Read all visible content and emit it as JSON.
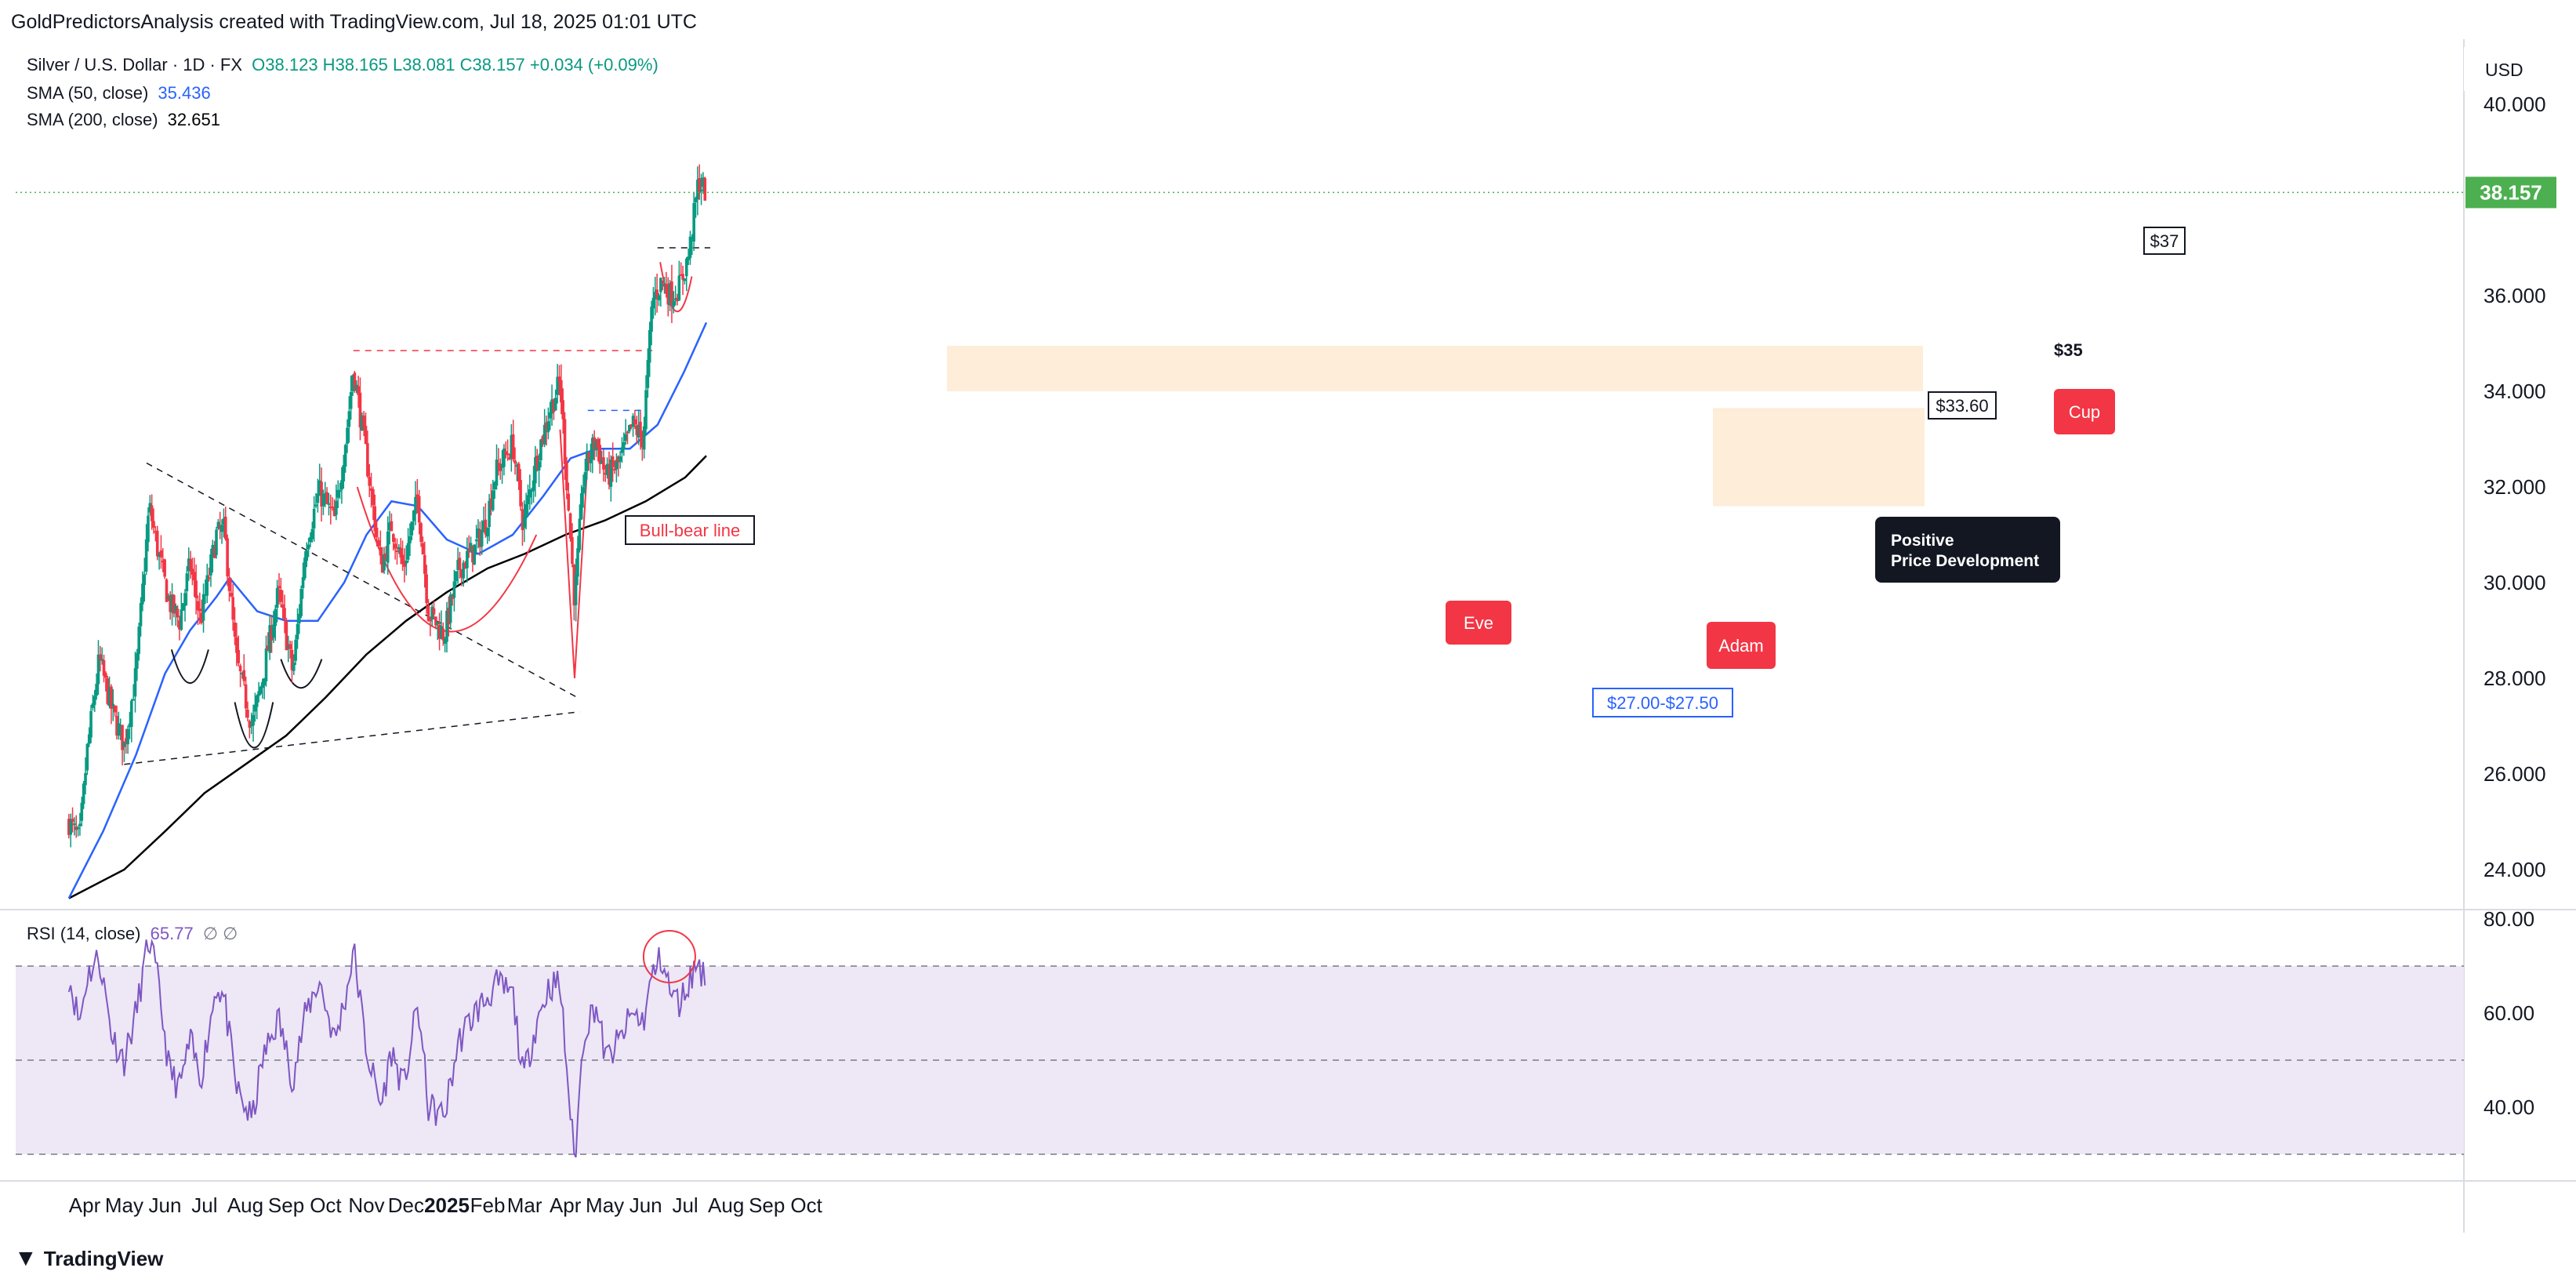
{
  "header": {
    "text": "GoldPredictorsAnalysis created with TradingView.com, Jul 18, 2025 01:01 UTC"
  },
  "legend": {
    "symbol": "Silver / U.S. Dollar · 1D · FX",
    "ohlc": "O38.123 H38.165 L38.081 C38.157 +0.034 (+0.09%)",
    "sma50_label": "SMA (50, close)",
    "sma50_value": "35.436",
    "sma200_label": "SMA (200, close)",
    "sma200_value": "32.651",
    "rsi_label": "RSI (14, close)",
    "rsi_value": "65.77",
    "rsi_extra": "∅ ∅"
  },
  "currency": "USD",
  "footer": {
    "brand": "TradingView",
    "logo": "tradingview-logo-icon"
  },
  "colors": {
    "up": "#089981",
    "down": "#f23645",
    "sma50": "#2962ff",
    "sma200": "#000000",
    "rsi": "#7e57c2",
    "rsi_band": "#ede7f6",
    "price_tag": "#4caf50",
    "annotation": "#f23645",
    "zone": "#fde8d0"
  },
  "chart_data": {
    "type": "candlestick",
    "title": "Silver / U.S. Dollar · 1D · FX",
    "x_tick_labels": [
      "Apr",
      "May",
      "Jun",
      "Jul",
      "Aug",
      "Sep",
      "Oct",
      "Nov",
      "Dec",
      "2025",
      "Feb",
      "Mar",
      "Apr",
      "May",
      "Jun",
      "Jul",
      "Aug",
      "Sep",
      "Oct"
    ],
    "y_tick_labels": [
      "24.000",
      "26.000",
      "28.000",
      "30.000",
      "32.000",
      "34.000",
      "36.000",
      "38.000",
      "40.000"
    ],
    "ylim": [
      23.3,
      40.4
    ],
    "last_price": "38.157",
    "close_path": [
      [
        "2024-03-20",
        25.0
      ],
      [
        "2024-03-28",
        24.6
      ],
      [
        "2024-04-03",
        26.5
      ],
      [
        "2024-04-12",
        28.4
      ],
      [
        "2024-04-22",
        27.3
      ],
      [
        "2024-05-01",
        26.6
      ],
      [
        "2024-05-10",
        28.1
      ],
      [
        "2024-05-20",
        31.6
      ],
      [
        "2024-05-27",
        30.6
      ],
      [
        "2024-06-04",
        29.6
      ],
      [
        "2024-06-12",
        29.2
      ],
      [
        "2024-06-20",
        30.4
      ],
      [
        "2024-06-28",
        29.2
      ],
      [
        "2024-07-10",
        31.0
      ],
      [
        "2024-07-16",
        31.1
      ],
      [
        "2024-07-25",
        28.4
      ],
      [
        "2024-08-06",
        27.0
      ],
      [
        "2024-08-14",
        28.0
      ],
      [
        "2024-08-26",
        29.8
      ],
      [
        "2024-09-06",
        28.1
      ],
      [
        "2024-09-16",
        30.8
      ],
      [
        "2024-09-26",
        31.9
      ],
      [
        "2024-10-08",
        31.3
      ],
      [
        "2024-10-18",
        33.4
      ],
      [
        "2024-10-22",
        34.5
      ],
      [
        "2024-11-01",
        32.6
      ],
      [
        "2024-11-12",
        30.3
      ],
      [
        "2024-11-20",
        31.2
      ],
      [
        "2024-11-29",
        30.3
      ],
      [
        "2024-12-10",
        31.8
      ],
      [
        "2024-12-18",
        29.4
      ],
      [
        "2024-12-30",
        28.9
      ],
      [
        "2025-01-10",
        30.3
      ],
      [
        "2025-01-22",
        30.7
      ],
      [
        "2025-01-31",
        31.3
      ],
      [
        "2025-02-07",
        32.3
      ],
      [
        "2025-02-20",
        32.9
      ],
      [
        "2025-02-28",
        31.2
      ],
      [
        "2025-03-10",
        32.6
      ],
      [
        "2025-03-20",
        33.6
      ],
      [
        "2025-03-28",
        34.2
      ],
      [
        "2025-04-03",
        31.7
      ],
      [
        "2025-04-08",
        29.6
      ],
      [
        "2025-04-15",
        32.3
      ],
      [
        "2025-04-24",
        33.0
      ],
      [
        "2025-05-02",
        32.2
      ],
      [
        "2025-05-12",
        32.5
      ],
      [
        "2025-05-22",
        33.3
      ],
      [
        "2025-05-30",
        33.0
      ],
      [
        "2025-06-06",
        35.9
      ],
      [
        "2025-06-13",
        36.3
      ],
      [
        "2025-06-20",
        36.0
      ],
      [
        "2025-06-27",
        36.2
      ],
      [
        "2025-07-04",
        36.9
      ],
      [
        "2025-07-11",
        38.4
      ],
      [
        "2025-07-17",
        38.157
      ]
    ],
    "sma50": {
      "name": "SMA (50, close)",
      "points": [
        [
          "2024-03-20",
          23.4
        ],
        [
          "2024-04-15",
          24.8
        ],
        [
          "2024-05-10",
          26.4
        ],
        [
          "2024-06-01",
          28.1
        ],
        [
          "2024-06-20",
          29.0
        ],
        [
          "2024-07-10",
          29.7
        ],
        [
          "2024-07-20",
          30.1
        ],
        [
          "2024-08-10",
          29.4
        ],
        [
          "2024-09-01",
          29.2
        ],
        [
          "2024-09-25",
          29.2
        ],
        [
          "2024-10-15",
          30.0
        ],
        [
          "2024-11-01",
          31.0
        ],
        [
          "2024-11-20",
          31.7
        ],
        [
          "2024-12-10",
          31.6
        ],
        [
          "2025-01-01",
          30.9
        ],
        [
          "2025-01-25",
          30.6
        ],
        [
          "2025-02-20",
          31.0
        ],
        [
          "2025-03-15",
          31.8
        ],
        [
          "2025-04-05",
          32.6
        ],
        [
          "2025-04-25",
          32.8
        ],
        [
          "2025-05-20",
          32.8
        ],
        [
          "2025-06-10",
          33.3
        ],
        [
          "2025-06-30",
          34.4
        ],
        [
          "2025-07-17",
          35.436
        ]
      ]
    },
    "sma200": {
      "name": "SMA (200, close)",
      "points": [
        [
          "2024-03-20",
          23.4
        ],
        [
          "2024-05-01",
          24.0
        ],
        [
          "2024-06-01",
          24.8
        ],
        [
          "2024-07-01",
          25.6
        ],
        [
          "2024-08-01",
          26.2
        ],
        [
          "2024-09-01",
          26.8
        ],
        [
          "2024-10-01",
          27.6
        ],
        [
          "2024-11-01",
          28.5
        ],
        [
          "2024-12-01",
          29.2
        ],
        [
          "2025-01-01",
          29.8
        ],
        [
          "2025-02-01",
          30.3
        ],
        [
          "2025-03-01",
          30.6
        ],
        [
          "2025-04-01",
          31.0
        ],
        [
          "2025-05-01",
          31.3
        ],
        [
          "2025-06-01",
          31.7
        ],
        [
          "2025-07-01",
          32.2
        ],
        [
          "2025-07-17",
          32.651
        ]
      ]
    },
    "rsi": {
      "name": "RSI (14, close)",
      "y_tick_labels": [
        "40.00",
        "60.00",
        "80.00"
      ],
      "levels": [
        30,
        50,
        70
      ],
      "ylim": [
        25,
        81
      ],
      "points": [
        [
          "2024-03-20",
          68
        ],
        [
          "2024-03-28",
          58
        ],
        [
          "2024-04-03",
          68
        ],
        [
          "2024-04-12",
          72
        ],
        [
          "2024-04-22",
          55
        ],
        [
          "2024-05-01",
          50
        ],
        [
          "2024-05-10",
          60
        ],
        [
          "2024-05-20",
          76
        ],
        [
          "2024-05-27",
          66
        ],
        [
          "2024-06-04",
          48
        ],
        [
          "2024-06-12",
          44
        ],
        [
          "2024-06-20",
          54
        ],
        [
          "2024-06-28",
          46
        ],
        [
          "2024-07-10",
          66
        ],
        [
          "2024-07-16",
          63
        ],
        [
          "2024-07-25",
          44
        ],
        [
          "2024-08-06",
          37
        ],
        [
          "2024-08-14",
          50
        ],
        [
          "2024-08-26",
          59
        ],
        [
          "2024-09-06",
          46
        ],
        [
          "2024-09-16",
          60
        ],
        [
          "2024-09-26",
          67
        ],
        [
          "2024-10-08",
          54
        ],
        [
          "2024-10-18",
          66
        ],
        [
          "2024-10-22",
          74
        ],
        [
          "2024-11-01",
          52
        ],
        [
          "2024-11-12",
          40
        ],
        [
          "2024-11-20",
          52
        ],
        [
          "2024-11-29",
          44
        ],
        [
          "2024-12-10",
          62
        ],
        [
          "2024-12-18",
          40
        ],
        [
          "2024-12-30",
          38
        ],
        [
          "2025-01-10",
          54
        ],
        [
          "2025-01-22",
          60
        ],
        [
          "2025-01-31",
          63
        ],
        [
          "2025-02-07",
          66
        ],
        [
          "2025-02-20",
          64
        ],
        [
          "2025-02-28",
          46
        ],
        [
          "2025-03-10",
          58
        ],
        [
          "2025-03-20",
          66
        ],
        [
          "2025-03-28",
          66
        ],
        [
          "2025-04-03",
          45
        ],
        [
          "2025-04-08",
          28
        ],
        [
          "2025-04-15",
          56
        ],
        [
          "2025-04-24",
          62
        ],
        [
          "2025-05-02",
          50
        ],
        [
          "2025-05-12",
          54
        ],
        [
          "2025-05-22",
          60
        ],
        [
          "2025-05-30",
          58
        ],
        [
          "2025-06-06",
          68
        ],
        [
          "2025-06-13",
          72
        ],
        [
          "2025-06-20",
          64
        ],
        [
          "2025-06-27",
          62
        ],
        [
          "2025-07-04",
          67
        ],
        [
          "2025-07-11",
          71
        ],
        [
          "2025-07-17",
          65.77
        ]
      ]
    },
    "annotations": [
      {
        "text": "Bull-bear line"
      },
      {
        "text": "$37"
      },
      {
        "text": "$35"
      },
      {
        "text": "$33.60"
      },
      {
        "text": "$27.00-$27.50"
      },
      {
        "text": "Eve"
      },
      {
        "text": "Adam"
      },
      {
        "text": "Cup"
      },
      {
        "text": "Positive",
        "text2": "Price Development"
      }
    ]
  }
}
